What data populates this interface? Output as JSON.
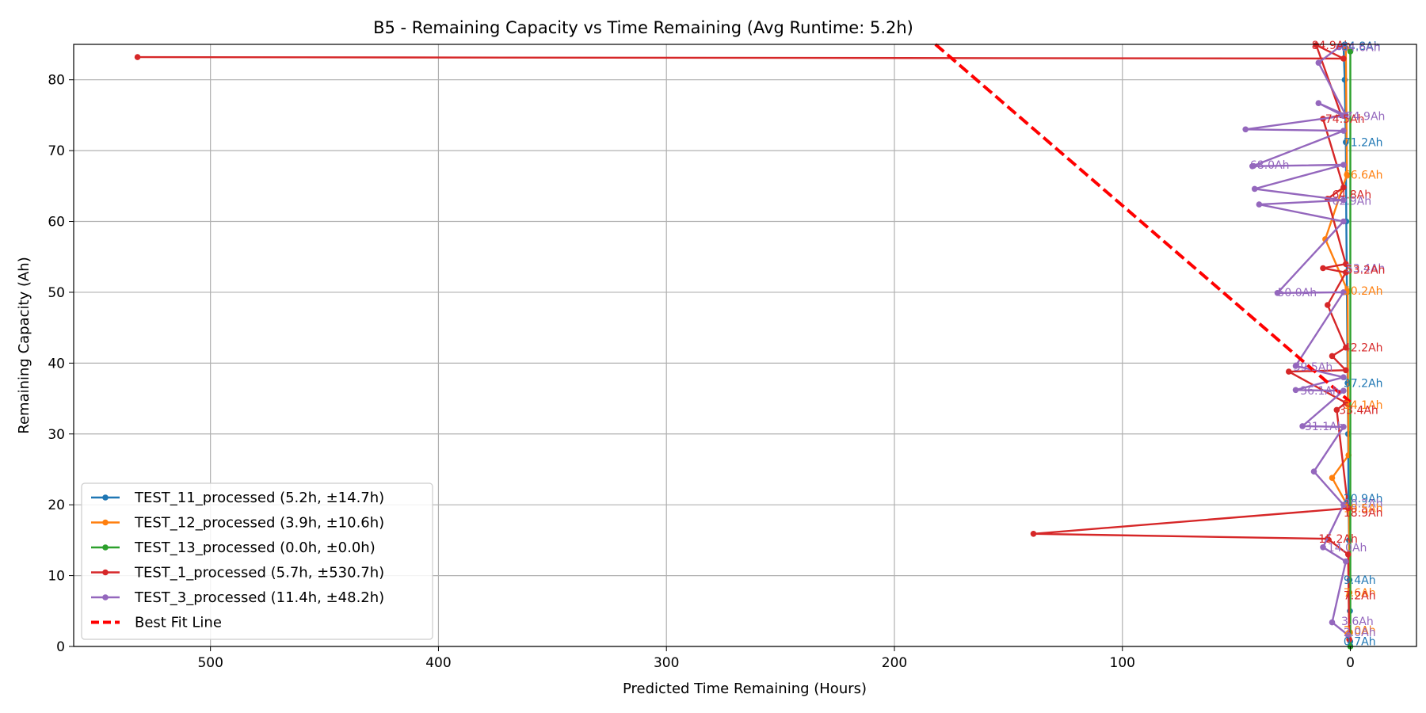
{
  "chart_data": {
    "type": "line",
    "title": "B5 - Remaining Capacity vs Time Remaining (Avg Runtime: 5.2h)",
    "xlabel": "Predicted Time Remaining (Hours)",
    "ylabel": "Remaining Capacity (Ah)",
    "xlim": [
      560,
      -29
    ],
    "ylim": [
      0,
      85
    ],
    "x_inverted": true,
    "x_ticks": [
      500,
      400,
      300,
      200,
      100,
      0
    ],
    "y_ticks": [
      0,
      10,
      20,
      30,
      40,
      50,
      60,
      70,
      80
    ],
    "grid": true,
    "legend_position": "lower-left",
    "series": [
      {
        "name": "TEST_11_processed (5.2h, ±14.7h)",
        "color": "#1f77b4",
        "x": [
          3.0,
          2.5,
          2.0,
          1.8,
          1.5,
          1.2,
          1.0,
          0.8,
          0.6,
          0.4,
          0.2,
          0.1
        ],
        "y": [
          84.8,
          80.0,
          71.2,
          60.0,
          50.0,
          37.2,
          30.0,
          20.9,
          15.0,
          9.4,
          5.0,
          0.7
        ]
      },
      {
        "name": "TEST_12_processed (3.9h, ±10.6h)",
        "color": "#ff7f0e",
        "x": [
          2.0,
          1.5,
          11.0,
          1.2,
          1.0,
          0.8,
          8.0,
          0.6,
          0.4,
          0.2
        ],
        "y": [
          84.5,
          66.6,
          57.5,
          50.2,
          34.1,
          27.0,
          23.8,
          19.5,
          7.6,
          2.0
        ]
      },
      {
        "name": "TEST_13_processed (0.0h, ±0.0h)",
        "color": "#2ca02c",
        "x": [
          0.0,
          0.0
        ],
        "y": [
          84.0,
          0.0
        ]
      },
      {
        "name": "TEST_1_processed (5.7h, ±530.7h)",
        "color": "#d62728",
        "x": [
          532.0,
          3.0,
          15.0,
          4.0,
          12.0,
          3.0,
          10.0,
          2.0,
          12.0,
          2.0,
          10.0,
          2.0,
          8.0,
          2.0,
          27.0,
          2.0,
          6.0,
          1.0,
          139.0,
          10.0,
          1.0,
          0.5
        ],
        "y": [
          83.2,
          83.0,
          84.9,
          75.0,
          74.5,
          64.8,
          63.2,
          54.0,
          53.4,
          52.8,
          48.2,
          42.2,
          41.0,
          39.0,
          38.8,
          34.4,
          33.4,
          19.5,
          15.9,
          15.2,
          13.0,
          1.0
        ]
      },
      {
        "name": "TEST_3_processed (11.4h, ±48.2h)",
        "color": "#9467bd",
        "x": [
          5.0,
          14.0,
          2.0,
          14.0,
          3.0,
          46.0,
          3.0,
          43.0,
          3.0,
          42.0,
          3.0,
          40.0,
          3.0,
          32.0,
          3.0,
          24.0,
          3.0,
          24.0,
          3.0,
          21.0,
          3.0,
          16.0,
          3.0,
          12.0,
          2.0,
          8.0,
          1.0
        ],
        "y": [
          84.6,
          82.4,
          75.0,
          76.7,
          74.9,
          73.0,
          72.8,
          67.8,
          68.0,
          64.6,
          63.0,
          62.4,
          60.0,
          49.9,
          50.0,
          39.6,
          38.0,
          36.2,
          36.1,
          31.1,
          31.0,
          24.7,
          20.0,
          14.0,
          12.0,
          3.4,
          1.6
        ]
      },
      {
        "name": "Best Fit Line",
        "color": "#ff0000",
        "style": "dashed",
        "x": [
          182.0,
          0.0
        ],
        "y": [
          85.0,
          34.5
        ]
      }
    ],
    "annotations": [
      {
        "text": "84.9Ah",
        "x": 17,
        "y": 84.9,
        "color": "#d62728"
      },
      {
        "text": "84.8Ah",
        "x": 4,
        "y": 84.8,
        "color": "#1f77b4"
      },
      {
        "text": "84.6Ah",
        "x": 4,
        "y": 84.6,
        "color": "#9467bd"
      },
      {
        "text": "74.5Ah",
        "x": 11,
        "y": 74.5,
        "color": "#d62728"
      },
      {
        "text": "74.9Ah",
        "x": 2,
        "y": 74.9,
        "color": "#9467bd"
      },
      {
        "text": "71.2Ah",
        "x": 3,
        "y": 71.2,
        "color": "#1f77b4"
      },
      {
        "text": "68.0Ah",
        "x": 44,
        "y": 68.0,
        "color": "#9467bd"
      },
      {
        "text": "66.6Ah",
        "x": 3,
        "y": 66.6,
        "color": "#ff7f0e"
      },
      {
        "text": "64.8Ah",
        "x": 8,
        "y": 63.8,
        "color": "#d62728"
      },
      {
        "text": "62.9Ah",
        "x": 8,
        "y": 62.9,
        "color": "#9467bd"
      },
      {
        "text": "53.4Ah",
        "x": 2,
        "y": 53.4,
        "color": "#9467bd"
      },
      {
        "text": "53.2Ah",
        "x": 2,
        "y": 53.2,
        "color": "#d62728"
      },
      {
        "text": "50.0Ah",
        "x": 32,
        "y": 50.0,
        "color": "#9467bd"
      },
      {
        "text": "50.2Ah",
        "x": 3,
        "y": 50.2,
        "color": "#ff7f0e"
      },
      {
        "text": "42.2Ah",
        "x": 3,
        "y": 42.2,
        "color": "#d62728"
      },
      {
        "text": "39.5Ah",
        "x": 25,
        "y": 39.5,
        "color": "#9467bd"
      },
      {
        "text": "37.2Ah",
        "x": 3,
        "y": 37.2,
        "color": "#1f77b4"
      },
      {
        "text": "36.1Ah",
        "x": 22,
        "y": 36.1,
        "color": "#9467bd"
      },
      {
        "text": "34.1Ah",
        "x": 3,
        "y": 34.1,
        "color": "#ff7f0e"
      },
      {
        "text": "33.4Ah",
        "x": 5,
        "y": 33.4,
        "color": "#d62728"
      },
      {
        "text": "31.1Ah",
        "x": 20,
        "y": 31.1,
        "color": "#9467bd"
      },
      {
        "text": "20.9Ah",
        "x": 3,
        "y": 20.9,
        "color": "#1f77b4"
      },
      {
        "text": "20.2Ah",
        "x": 3,
        "y": 20.2,
        "color": "#9467bd"
      },
      {
        "text": "19.5Ah",
        "x": 3,
        "y": 19.5,
        "color": "#ff7f0e"
      },
      {
        "text": "18.9Ah",
        "x": 3,
        "y": 18.9,
        "color": "#d62728"
      },
      {
        "text": "15.2Ah",
        "x": 14,
        "y": 15.2,
        "color": "#d62728"
      },
      {
        "text": "14.0Ah",
        "x": 10,
        "y": 14.0,
        "color": "#9467bd"
      },
      {
        "text": "9.4Ah",
        "x": 3,
        "y": 9.4,
        "color": "#1f77b4"
      },
      {
        "text": "7.6Ah",
        "x": 3,
        "y": 7.6,
        "color": "#ff7f0e"
      },
      {
        "text": "7.2Ah",
        "x": 3,
        "y": 7.2,
        "color": "#d62728"
      },
      {
        "text": "3.6Ah",
        "x": 4,
        "y": 3.6,
        "color": "#9467bd"
      },
      {
        "text": "2.0Ah",
        "x": 3,
        "y": 2.3,
        "color": "#ff7f0e"
      },
      {
        "text": "2.0Ah",
        "x": 3,
        "y": 2.0,
        "color": "#9467bd"
      },
      {
        "text": "0.7Ah",
        "x": 3,
        "y": 0.7,
        "color": "#1f77b4"
      }
    ]
  }
}
